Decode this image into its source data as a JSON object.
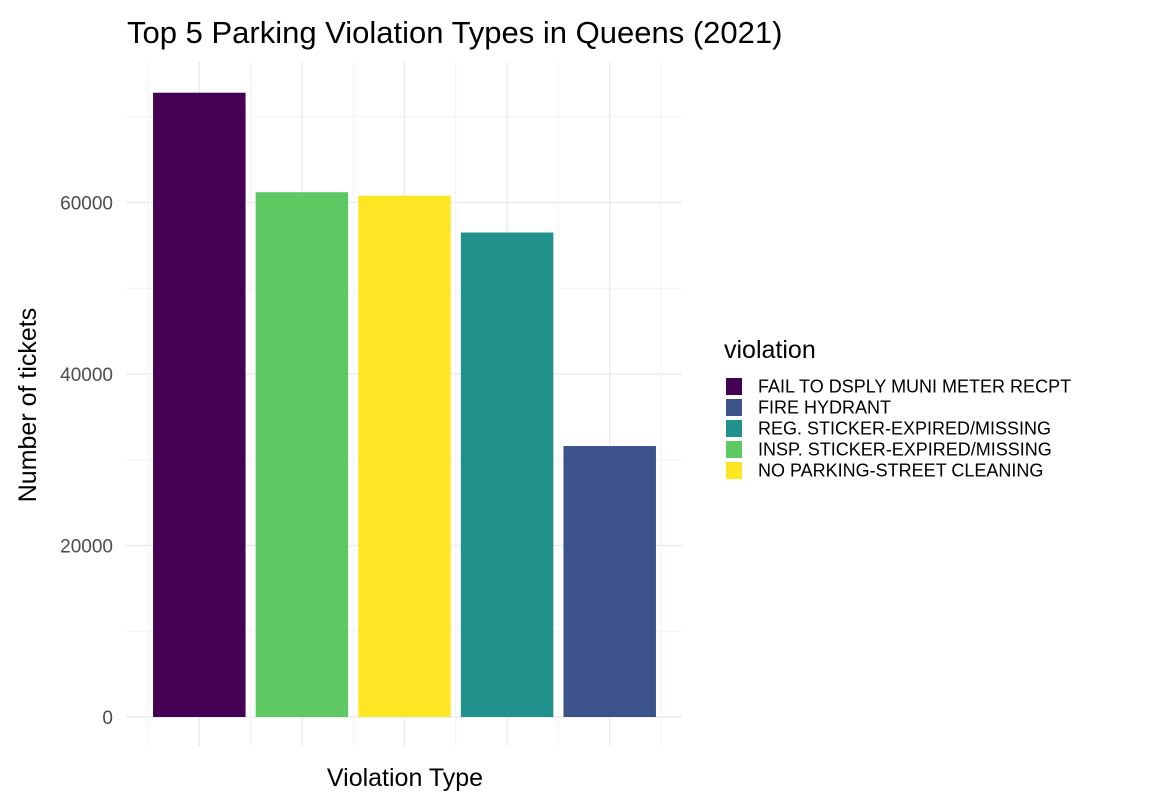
{
  "chart_data": {
    "type": "bar",
    "title": "Top 5 Parking Violation Types in Queens (2021)",
    "xlabel": "Violation Type",
    "ylabel": "Number of tickets",
    "ylim": [
      0,
      76000
    ],
    "yticks": [
      0,
      20000,
      40000,
      60000
    ],
    "y_tick_labels": [
      "0",
      "20000",
      "40000",
      "60000"
    ],
    "grid": true,
    "legend_position": "right",
    "legend_title": "violation",
    "categories": [
      "FAIL TO DSPLY MUNI METER RECPT",
      "INSP. STICKER-EXPIRED/MISSING",
      "NO PARKING-STREET CLEANING",
      "REG. STICKER-EXPIRED/MISSING",
      "FIRE HYDRANT"
    ],
    "values": [
      72800,
      61200,
      60800,
      56500,
      31600
    ],
    "colors": [
      "#440154",
      "#5ec962",
      "#fde725",
      "#21918c",
      "#3b528b"
    ],
    "legend_entries": [
      {
        "label": "FAIL TO DSPLY MUNI METER RECPT",
        "color": "#440154"
      },
      {
        "label": "FIRE HYDRANT",
        "color": "#3b528b"
      },
      {
        "label": "REG. STICKER-EXPIRED/MISSING",
        "color": "#21918c"
      },
      {
        "label": "INSP. STICKER-EXPIRED/MISSING",
        "color": "#5ec962"
      },
      {
        "label": "NO PARKING-STREET CLEANING",
        "color": "#fde725"
      }
    ]
  }
}
